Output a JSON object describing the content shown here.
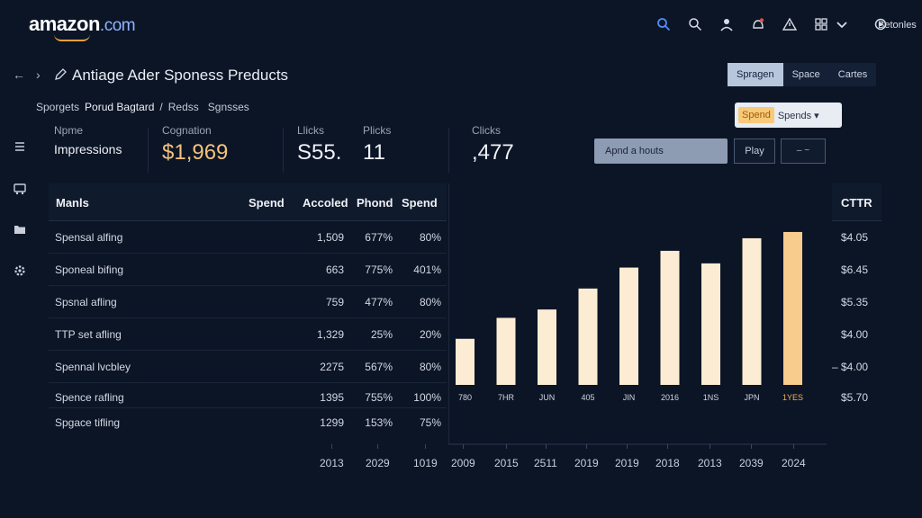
{
  "header": {
    "logo": "amazon",
    "logo_suffix": ".com",
    "account": "Betonles",
    "icons": [
      "search-icon",
      "search-icon-2",
      "user-icon",
      "notification-icon",
      "warning-icon",
      "grid-icon",
      "chevron-down-icon",
      "settings-icon"
    ]
  },
  "title_row": {
    "back": "←",
    "forward": "›",
    "title": "Antiage Ader Sponess Preducts"
  },
  "tabs": [
    "Spragen",
    "Space",
    "Cartes"
  ],
  "spend_popup": {
    "chip": "Spend",
    "select": "Spends ▾"
  },
  "breadcrumb": [
    "Sporgets",
    "Porud Bagtard",
    "Redss",
    "Sgnsses"
  ],
  "kpis": [
    {
      "label": "Npme",
      "value": "Impressions"
    },
    {
      "label": "Cognation",
      "value": "$1,969"
    },
    {
      "label": "Llicks",
      "value": "S55."
    },
    {
      "label": "Plicks",
      "value": "11"
    },
    {
      "label": "Clicks",
      "value": ",477"
    }
  ],
  "controls": {
    "append": "Apnd a houts",
    "play": "Play",
    "more": "– ~"
  },
  "table": {
    "headers": [
      "Manls",
      "Spend",
      "Accoled",
      "Phond",
      "Spend"
    ],
    "ctr_header": "CTTR",
    "rows": [
      {
        "name": "Spensal alfing",
        "c1": "1,509",
        "c2": "677%",
        "c3": "80%",
        "ctr": "$4.05"
      },
      {
        "name": "Sponeal bifing",
        "c1": "663",
        "c2": "775%",
        "c3": "401%",
        "ctr": "$6.45"
      },
      {
        "name": "Spsnal afling",
        "c1": "759",
        "c2": "477%",
        "c3": "80%",
        "ctr": "$5.35"
      },
      {
        "name": "TTP set afling",
        "c1": "1,329",
        "c2": "25%",
        "c3": "20%",
        "ctr": "$4.00"
      },
      {
        "name": "Spennal lvcbley",
        "c1": "2275",
        "c2": "567%",
        "c3": "80%",
        "ctr": "– $4.00"
      },
      {
        "name": "Spence rafling",
        "c1": "1395",
        "c2": "755%",
        "c3": "100%",
        "ctr": "$5.70"
      },
      {
        "name": "Spgace tifling",
        "c1": "1299",
        "c2": "153%",
        "c3": "75%",
        "ctr": ""
      }
    ]
  },
  "chart_data": {
    "type": "bar",
    "categories": [
      "780",
      "7HR",
      "JUN",
      "405",
      "JIN",
      "2016",
      "1NS",
      "JPN",
      "1YES"
    ],
    "values": [
      22,
      32,
      36,
      46,
      56,
      64,
      58,
      70,
      73
    ],
    "highlight_index": 8,
    "ylim": [
      0,
      100
    ],
    "bar_color": "#fbecd3",
    "highlight_color": "#f7cc8d"
  },
  "years": [
    "2013",
    "2029",
    "1019",
    "2009",
    "2015",
    "2511",
    "2019",
    "2019",
    "2018",
    "2013",
    "2039",
    "2024"
  ]
}
